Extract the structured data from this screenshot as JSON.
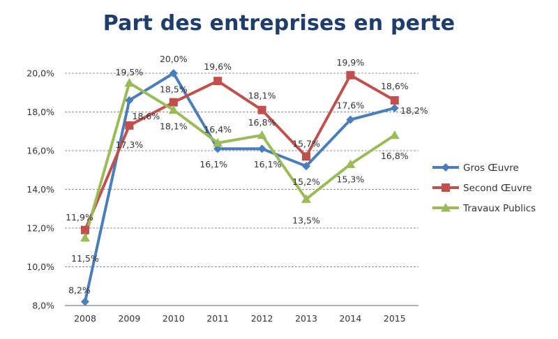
{
  "chart_data": {
    "type": "line",
    "title": "Part des entreprises en perte",
    "xlabel": "",
    "ylabel": "",
    "x": [
      "2008",
      "2009",
      "2010",
      "2011",
      "2012",
      "2013",
      "2014",
      "2015"
    ],
    "ylim": [
      0.08,
      0.2
    ],
    "y_ticks": [
      "8,0%",
      "10,0%",
      "12,0%",
      "14,0%",
      "16,0%",
      "18,0%",
      "20,0%"
    ],
    "y_tick_values": [
      0.08,
      0.1,
      0.12,
      0.14,
      0.16,
      0.18,
      0.2
    ],
    "grid": "horizontal dashed",
    "legend_position": "right",
    "series": [
      {
        "name": "Gros Œuvre",
        "color": "#4a7ebb",
        "marker": "diamond",
        "values": [
          0.082,
          0.186,
          0.2,
          0.161,
          0.161,
          0.152,
          0.176,
          0.182
        ],
        "labels": [
          "8,2%",
          "18,6%",
          "20,0%",
          "16,1%",
          "16,1%",
          "15,2%",
          "17,6%",
          "18,2%"
        ]
      },
      {
        "name": "Second Œuvre",
        "color": "#c0504d",
        "marker": "square",
        "values": [
          0.119,
          0.173,
          0.185,
          0.196,
          0.181,
          0.157,
          0.199,
          0.186
        ],
        "labels": [
          "11,9%",
          "17,3%",
          "18,5%",
          "19,6%",
          "18,1%",
          "15,7%",
          "19,9%",
          "18,6%"
        ]
      },
      {
        "name": "Travaux Publics",
        "color": "#9bbb59",
        "marker": "triangle",
        "values": [
          0.115,
          0.195,
          0.181,
          0.164,
          0.168,
          0.135,
          0.153,
          0.168
        ],
        "labels": [
          "11,5%",
          "19,5%",
          "18,1%",
          "16,4%",
          "16,8%",
          "13,5%",
          "15,3%",
          "16,8%"
        ]
      }
    ]
  }
}
